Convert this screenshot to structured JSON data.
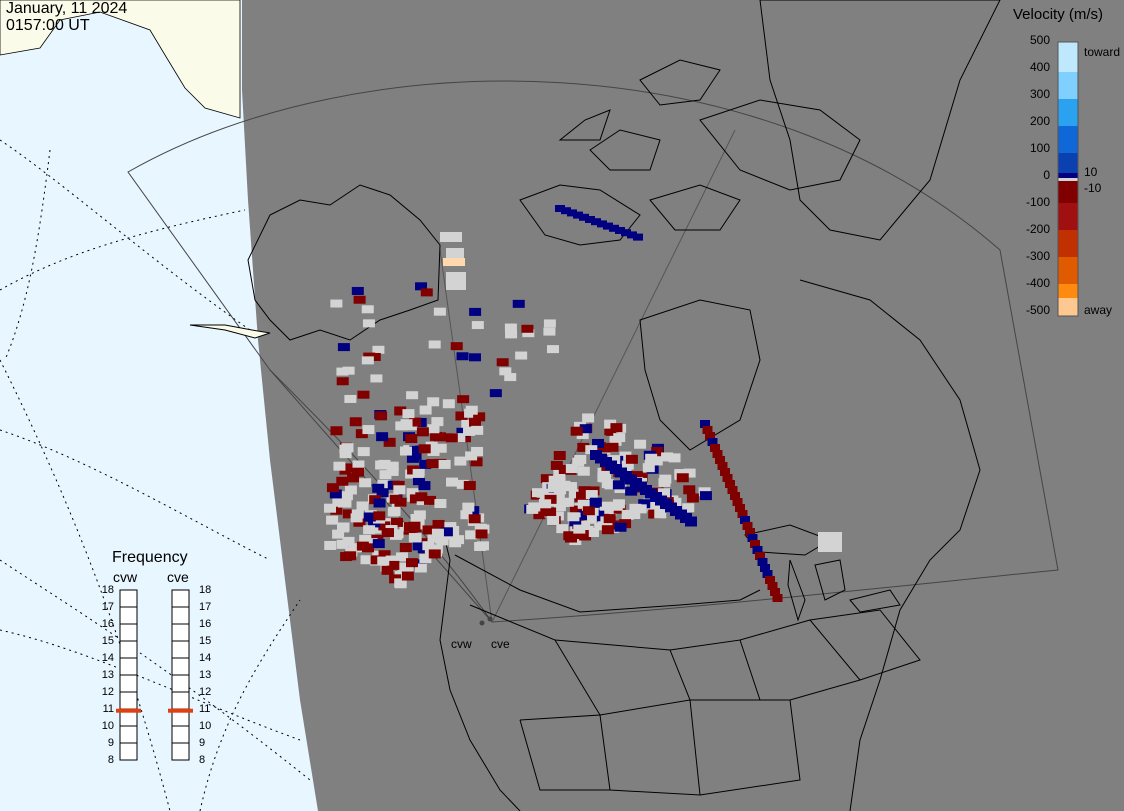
{
  "header": {
    "date": "January, 11 2024",
    "time": "0157:00 UT"
  },
  "velocity_legend": {
    "title": "Velocity (m/s)",
    "ticks": [
      "500",
      "400",
      "300",
      "200",
      "100",
      "0",
      "-100",
      "-200",
      "-300",
      "-400",
      "-500"
    ],
    "toward_label": "toward",
    "away_label": "away",
    "pos_threshold": "10",
    "neg_threshold": "-10",
    "colors_toward": [
      "#bfe8ff",
      "#7fd0ff",
      "#2aa2f0",
      "#1068d8",
      "#0a40b0",
      "#000080"
    ],
    "colors_away": [
      "#800000",
      "#a01010",
      "#c03000",
      "#e05a00",
      "#ff8a10",
      "#ffc890"
    ]
  },
  "frequency": {
    "title": "Frequency",
    "radars": [
      {
        "name": "cvw",
        "freq_mhz": 10.9
      },
      {
        "name": "cve",
        "freq_mhz": 10.9
      }
    ],
    "ticks": [
      "18",
      "17",
      "16",
      "15",
      "14",
      "13",
      "12",
      "11",
      "10",
      "9",
      "8"
    ],
    "marker_color": "#e04010"
  },
  "sites": [
    {
      "name": "cvw"
    },
    {
      "name": "cve"
    }
  ],
  "colors": {
    "land": "#808080",
    "ocean": "#e8f6ff",
    "ground_scatter": "#d3d3d3",
    "coast": "#000000"
  }
}
